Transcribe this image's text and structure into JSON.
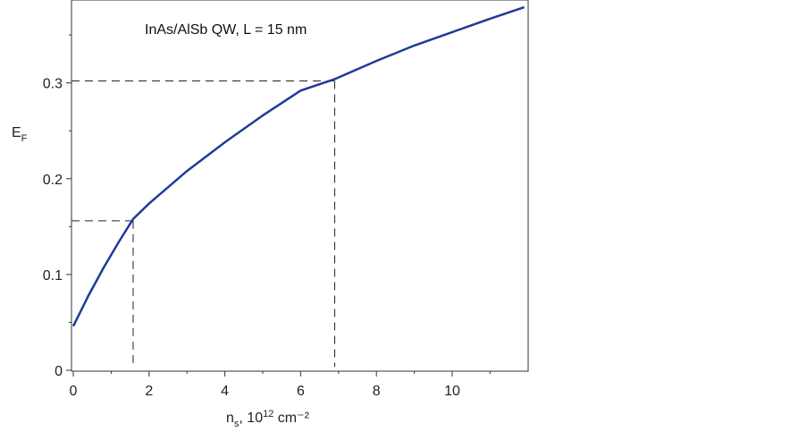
{
  "chart_data": {
    "type": "line",
    "annotation": "InAs/AlSb  QW, L = 15 nm",
    "xlabel": {
      "main": "n",
      "sub": "s",
      "rest": ", 10",
      "sup": "12",
      "unit": " cm⁻²"
    },
    "ylabel": {
      "main": "E",
      "sub": "F"
    },
    "xlim": [
      0,
      12
    ],
    "ylim": [
      0,
      0.38
    ],
    "xticks": [
      0,
      2,
      4,
      6,
      8,
      10
    ],
    "xtick_labels": [
      "0",
      "2",
      "4",
      "6",
      "8",
      "10"
    ],
    "yticks": [
      0,
      0.1,
      0.2,
      0.3
    ],
    "ytick_labels": [
      "0",
      "0.1",
      "0.2",
      "0.3"
    ],
    "grid": false,
    "line_color": "#1f3b99",
    "series": [
      {
        "x": [
          0,
          0.4,
          0.8,
          1.2,
          1.58,
          2.0,
          3.0,
          4.0,
          5.0,
          6.0,
          6.9,
          8.0,
          9.0,
          10.0,
          11.0,
          11.9
        ],
        "y": [
          0.046,
          0.078,
          0.107,
          0.134,
          0.158,
          0.174,
          0.208,
          0.238,
          0.266,
          0.292,
          0.304,
          0.323,
          0.339,
          0.353,
          0.367,
          0.379
        ]
      }
    ],
    "reference_lines": [
      {
        "x": 1.58,
        "y": 0.156
      },
      {
        "x": 6.9,
        "y": 0.302
      }
    ]
  }
}
